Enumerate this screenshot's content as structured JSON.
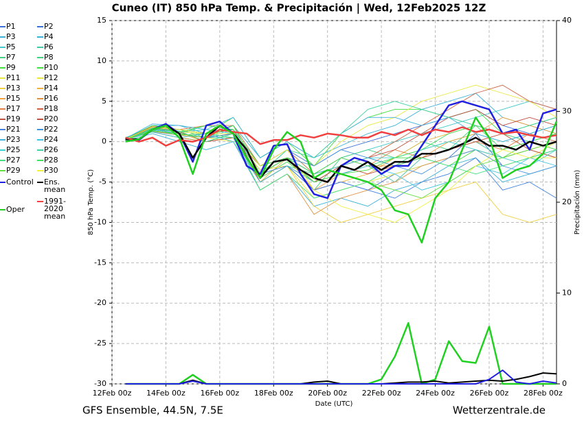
{
  "chart_data": {
    "type": "line",
    "title": "Cuneo  (IT)  850 hPa Temp. & Precipitación | Wed, 12Feb2025 12Z",
    "subtitle_left": "GFS Ensemble, 44.5N, 7.5E",
    "subtitle_right": "Wetterzentrale.de",
    "x_label": "Date (UTC)",
    "y_label": "850 hPa Temp. (°C)",
    "y2_label": "Precipitación (mm)",
    "xlim": [
      0,
      16.5
    ],
    "ylim": [
      -30,
      15
    ],
    "y2lim": [
      0,
      40
    ],
    "xticks": [
      {
        "value": 0,
        "label": "12Feb 00z"
      },
      {
        "value": 2,
        "label": "14Feb 00z"
      },
      {
        "value": 4,
        "label": "16Feb 00z"
      },
      {
        "value": 6,
        "label": "18Feb 00z"
      },
      {
        "value": 8,
        "label": "20Feb 00z"
      },
      {
        "value": 10,
        "label": "22Feb 00z"
      },
      {
        "value": 12,
        "label": "24Feb 00z"
      },
      {
        "value": 14,
        "label": "26Feb 00z"
      },
      {
        "value": 16,
        "label": "28Feb 00z"
      }
    ],
    "yticks": [
      -30,
      -25,
      -20,
      -15,
      -10,
      -5,
      0,
      5,
      10,
      15
    ],
    "y2ticks": [
      0,
      10,
      20,
      30,
      40
    ],
    "grid": true,
    "x": [
      0.5,
      1,
      1.5,
      2,
      2.5,
      3,
      3.5,
      4,
      4.5,
      5,
      5.5,
      6,
      6.5,
      7,
      7.5,
      8,
      8.5,
      9,
      9.5,
      10,
      10.5,
      11,
      11.5,
      12,
      12.5,
      13,
      13.5,
      14,
      14.5,
      15,
      15.5,
      16,
      16.5
    ],
    "member_x": [
      0.5,
      1.5,
      2.5,
      3.5,
      4.5,
      5.5,
      6.5,
      7.5,
      8.5,
      9.5,
      10.5,
      11.5,
      12.5,
      13.5,
      14.5,
      15.5,
      16.5
    ],
    "members": [
      {
        "name": "P1",
        "color": "#3a6fd8",
        "values": [
          0.2,
          1.8,
          1.5,
          1.0,
          1.5,
          -3,
          -1,
          -3,
          -1,
          0,
          1,
          2,
          3,
          4,
          2,
          1,
          0
        ]
      },
      {
        "name": "P2",
        "color": "#3a6fd8",
        "values": [
          0.4,
          1.2,
          0.5,
          0,
          0.5,
          -5,
          -3,
          -6,
          -5,
          -6,
          -4,
          -3,
          -2,
          1,
          -3,
          -2,
          -1
        ]
      },
      {
        "name": "P3",
        "color": "#3ab0d8",
        "values": [
          0.3,
          2,
          2,
          1,
          2,
          -2,
          0,
          -2,
          -0.5,
          1,
          2,
          4,
          5,
          6,
          3,
          2,
          1
        ]
      },
      {
        "name": "P4",
        "color": "#3ab0d8",
        "values": [
          0.1,
          1,
          0,
          -1,
          0,
          -6,
          -4,
          -8,
          -7,
          -8,
          -6,
          -5,
          -3,
          -2,
          -5,
          -4,
          -3
        ]
      },
      {
        "name": "P5",
        "color": "#40c8c8",
        "values": [
          0.3,
          1.6,
          1.2,
          1.5,
          1,
          -4,
          -1,
          -4,
          -2,
          -1,
          0,
          1,
          2,
          3,
          4,
          5,
          4
        ]
      },
      {
        "name": "P6",
        "color": "#40c8a0",
        "values": [
          0.2,
          1.4,
          0.8,
          0.5,
          2,
          -3,
          -2,
          -5,
          -4,
          -3,
          -5,
          -2,
          -1,
          0,
          -2,
          -1,
          -2
        ]
      },
      {
        "name": "P7",
        "color": "#40d080",
        "values": [
          0.5,
          1.8,
          1.5,
          0.5,
          0.5,
          -5,
          -3,
          -4,
          -3,
          -2,
          -3,
          -1,
          0,
          1,
          0,
          1,
          2
        ]
      },
      {
        "name": "P8",
        "color": "#40d080",
        "values": [
          0.3,
          1.5,
          1,
          2,
          1.5,
          -4,
          -2,
          -6,
          -2,
          -1,
          -2,
          0,
          -1,
          2,
          1,
          0,
          1
        ]
      },
      {
        "name": "P9",
        "color": "#40e040",
        "values": [
          0.2,
          1.2,
          0.5,
          0,
          1,
          -4.5,
          -2.5,
          -5,
          -4,
          -3.5,
          -2,
          -2,
          -3,
          -1,
          -2,
          0,
          -1
        ]
      },
      {
        "name": "P10",
        "color": "#40e040",
        "values": [
          0.4,
          2,
          1.5,
          1,
          3,
          -2,
          0,
          -3,
          1,
          3,
          4,
          4,
          3,
          4,
          1,
          2,
          3
        ]
      },
      {
        "name": "P11",
        "color": "#e8e840",
        "values": [
          0.3,
          1.3,
          1,
          0.5,
          0,
          -5,
          -3,
          -7,
          -6,
          -5,
          -4,
          -3,
          -2,
          -1,
          -3,
          -2,
          0
        ]
      },
      {
        "name": "P12",
        "color": "#e8e840",
        "values": [
          0.2,
          1.7,
          1.2,
          1,
          1.5,
          -4,
          -2,
          -3,
          0,
          2,
          3,
          5,
          6,
          7,
          6,
          5,
          3
        ]
      },
      {
        "name": "P13",
        "color": "#f0d040",
        "values": [
          0.1,
          1.5,
          1,
          0,
          0.5,
          -3.5,
          -3,
          -8,
          -10,
          -9,
          -8,
          -7,
          -6,
          -5,
          -9,
          -10,
          -9
        ]
      },
      {
        "name": "P14",
        "color": "#f0b040",
        "values": [
          0.3,
          1.4,
          0.8,
          0.5,
          1,
          -5,
          -2,
          -6,
          -5,
          -4,
          -2,
          0,
          1,
          2,
          1,
          -1,
          0
        ]
      },
      {
        "name": "P15",
        "color": "#f0a040",
        "values": [
          0.2,
          1.6,
          1.5,
          1,
          1,
          -4,
          -2,
          -6,
          -4,
          -3,
          -3,
          -2,
          0,
          1,
          3,
          2,
          1
        ]
      },
      {
        "name": "P16",
        "color": "#e09040",
        "values": [
          0.4,
          1.2,
          0.5,
          0,
          0.5,
          -6,
          -4,
          -9,
          -7,
          -6,
          -5,
          -3,
          -2,
          -1,
          -2,
          -1,
          -2
        ]
      },
      {
        "name": "P17",
        "color": "#e08040",
        "values": [
          0.3,
          1.9,
          1.5,
          2,
          2,
          -3,
          -1,
          -4,
          -2,
          -3,
          -1,
          -2,
          -1,
          0,
          -1,
          1,
          0
        ]
      },
      {
        "name": "P18",
        "color": "#d06040",
        "values": [
          0.2,
          1.5,
          1,
          0.5,
          1,
          -4,
          -2,
          -5,
          -3,
          -2,
          0,
          2,
          4,
          6,
          7,
          5,
          4
        ]
      },
      {
        "name": "P19",
        "color": "#c05040",
        "values": [
          0.3,
          1.3,
          0.8,
          1,
          1.5,
          -5,
          -3,
          -5,
          -3,
          -2,
          -1,
          1,
          3,
          4,
          2,
          3,
          2
        ]
      },
      {
        "name": "P20",
        "color": "#c05040",
        "values": [
          0.1,
          1.8,
          1.2,
          0,
          0.5,
          -3,
          -2,
          -4,
          -3,
          -4,
          -3,
          -2,
          -1,
          0,
          1,
          -1,
          -2
        ]
      },
      {
        "name": "P21",
        "color": "#4080e0",
        "values": [
          0.3,
          1.6,
          1,
          0.5,
          1,
          -4,
          -3,
          -6,
          -5,
          -6,
          -7,
          -5,
          -4,
          -2,
          -6,
          -5,
          -7
        ]
      },
      {
        "name": "P22",
        "color": "#4090e0",
        "values": [
          0.2,
          1.4,
          1.5,
          1,
          2,
          -4,
          -2,
          -3,
          -1,
          -2,
          -3,
          -4,
          -2,
          -1,
          -3,
          -4,
          -3
        ]
      },
      {
        "name": "P23",
        "color": "#40b0e0",
        "values": [
          0.4,
          2.2,
          2,
          1.5,
          3,
          -2,
          0,
          -2,
          1,
          3,
          3,
          2,
          3,
          1,
          0,
          1,
          2
        ]
      },
      {
        "name": "P24",
        "color": "#40c0e0",
        "values": [
          0.3,
          1.2,
          0.5,
          1,
          0,
          -5,
          -3,
          -5,
          -4,
          -3,
          -4,
          -6,
          -5,
          -3,
          -4,
          -2,
          -3
        ]
      },
      {
        "name": "P25",
        "color": "#40d0d0",
        "values": [
          0.2,
          1.5,
          1,
          0.5,
          1.5,
          -4,
          -2,
          -4,
          -3,
          -2,
          -2,
          -1,
          0,
          -1,
          -2,
          -3,
          -1
        ]
      },
      {
        "name": "P26",
        "color": "#40d0a0",
        "values": [
          0.1,
          1.7,
          1.3,
          0,
          1,
          -4,
          -1,
          -2,
          1,
          4,
          5,
          4,
          3,
          2,
          1,
          2,
          3
        ]
      },
      {
        "name": "P27",
        "color": "#40e080",
        "values": [
          0.3,
          1.4,
          0.8,
          1,
          0.5,
          -6,
          -4,
          -7,
          -6,
          -5,
          -3,
          -2,
          -3,
          -4,
          -3,
          -2,
          -1
        ]
      },
      {
        "name": "P28",
        "color": "#40e060",
        "values": [
          0.2,
          1.6,
          1.2,
          2,
          1.5,
          -3,
          -2,
          -4,
          -2,
          -3,
          -2,
          -1,
          1,
          2,
          -1,
          0,
          1
        ]
      },
      {
        "name": "P29",
        "color": "#60e040",
        "values": [
          0.4,
          1.3,
          1,
          0.5,
          2,
          -4,
          -2,
          -5,
          -4,
          -5,
          -6,
          -7,
          -5,
          -3,
          -2,
          -1,
          0
        ]
      },
      {
        "name": "P30",
        "color": "#f0f040",
        "values": [
          0.3,
          1.8,
          1.5,
          1,
          1,
          -3,
          -1,
          -6,
          -8,
          -9,
          -10,
          -8,
          -6,
          -3,
          -1,
          -2,
          -2
        ]
      }
    ],
    "series": [
      {
        "name": "Control",
        "color": "#2020e0",
        "values": [
          0.3,
          0.2,
          1.5,
          2.2,
          1,
          -2.5,
          2,
          2.5,
          1,
          -3,
          -4,
          -0.5,
          -0.3,
          -4,
          -6.5,
          -7,
          -3,
          -2,
          -2.5,
          -4,
          -3,
          -3,
          -0.5,
          2,
          4.5,
          5,
          4.5,
          4,
          1,
          1.5,
          -1,
          3.5,
          4
        ]
      },
      {
        "name": "Ens. mean",
        "color": "#000000",
        "values": [
          0.3,
          0.3,
          1.5,
          2,
          1,
          -2,
          0.5,
          2,
          1,
          -1,
          -4.5,
          -2.5,
          -2.2,
          -3.5,
          -4.5,
          -5,
          -3,
          -3.5,
          -2.5,
          -3.5,
          -2.5,
          -2.5,
          -1.5,
          -1.5,
          -1,
          -0.3,
          0.5,
          -0.5,
          -0.5,
          -1,
          0,
          -0.5,
          0
        ]
      },
      {
        "name": "1991-2020 mean",
        "color": "#f04040",
        "values": [
          0.5,
          0,
          0.5,
          -0.5,
          0.2,
          0,
          0.5,
          1.5,
          1.2,
          1,
          -0.3,
          0.2,
          0.2,
          0.8,
          0.5,
          1,
          0.8,
          0.5,
          0.5,
          1.2,
          0.8,
          1.5,
          0.8,
          1.5,
          1.2,
          1.8,
          1.2,
          1.5,
          1,
          1.2,
          0.8,
          0.5,
          0.8
        ]
      },
      {
        "name": "Oper",
        "color": "#20d020",
        "values": [
          0,
          0.3,
          1.5,
          2,
          0.5,
          -4,
          1,
          2,
          1,
          -2,
          -4.5,
          -1,
          1.2,
          0,
          -4.5,
          -3.5,
          -4,
          -4.5,
          -5,
          -6,
          -8.5,
          -9,
          -12.5,
          -7,
          -5,
          -1,
          3,
          0.5,
          -4.5,
          -3.5,
          -3,
          -1.5,
          2.5
        ]
      }
    ],
    "precip_series": [
      {
        "color": "#20d020",
        "axis": "y2",
        "values": [
          0,
          0,
          0,
          0,
          0,
          1,
          0,
          0,
          0,
          0,
          0,
          0,
          0,
          0,
          0,
          0,
          0,
          0,
          0,
          0.5,
          3,
          6.7,
          0,
          0.5,
          4.7,
          2.5,
          2.3,
          6.3,
          0,
          0,
          0,
          0,
          0
        ]
      },
      {
        "color": "#000000",
        "axis": "y2",
        "values": [
          0,
          0,
          0,
          0,
          0,
          0.4,
          0,
          0,
          0,
          0,
          0,
          0,
          0,
          0,
          0.2,
          0.3,
          0,
          0,
          0,
          0,
          0.1,
          0.2,
          0.2,
          0.3,
          0.1,
          0.2,
          0.3,
          0.4,
          0.3,
          0.5,
          0.8,
          1.2,
          1.1
        ]
      },
      {
        "color": "#2020e0",
        "axis": "y2",
        "values": [
          0,
          0,
          0,
          0,
          0,
          0.3,
          0,
          0,
          0,
          0,
          0,
          0,
          0,
          0,
          0,
          0,
          0,
          0,
          0,
          0,
          0,
          0,
          0,
          0,
          0,
          0,
          0,
          0.5,
          1.5,
          0.2,
          0,
          0.3,
          0.1
        ]
      }
    ]
  }
}
